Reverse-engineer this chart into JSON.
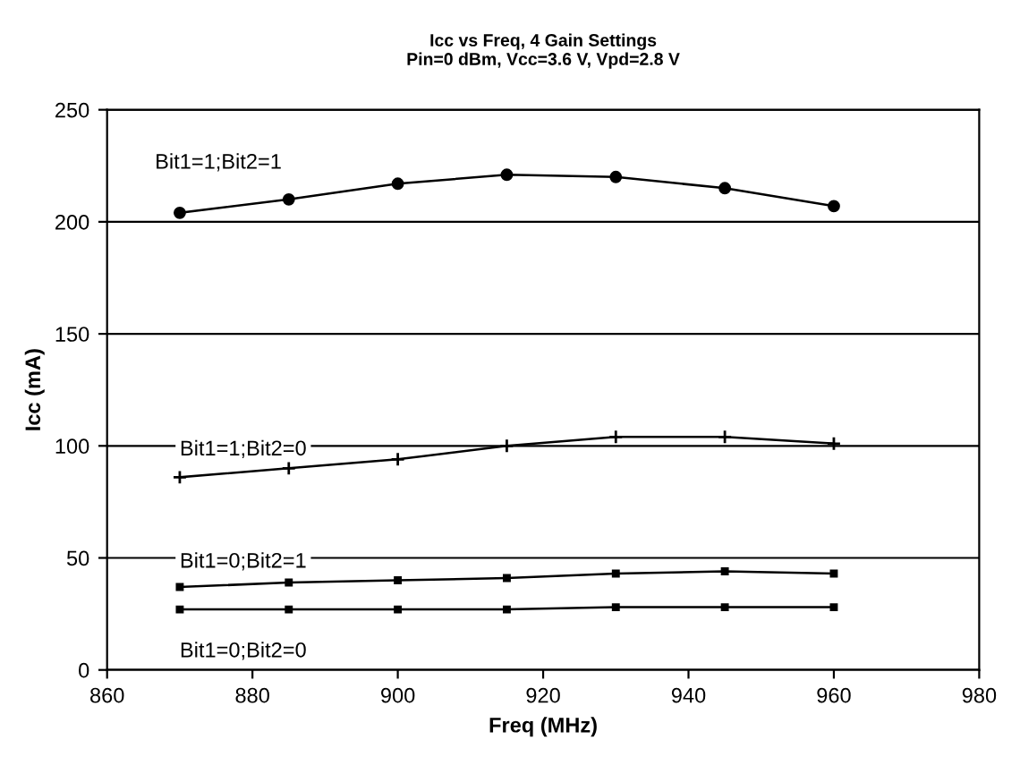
{
  "chart_data": {
    "type": "line",
    "title": "Icc vs Freq, 4 Gain Settings\nPin=0 dBm, Vcc=3.6 V, Vpd=2.8 V",
    "xlabel": "Freq (MHz)",
    "ylabel": "Icc (mA)",
    "x": [
      870,
      885,
      900,
      915,
      930,
      945,
      960
    ],
    "series": [
      {
        "name": "Bit1=1;Bit2=1",
        "color": "#000000",
        "marker": "circle",
        "values": [
          204,
          210,
          217,
          221,
          220,
          215,
          207
        ]
      },
      {
        "name": "Bit1=1;Bit2=0",
        "color": "#000000",
        "marker": "cross",
        "values": [
          86,
          90,
          94,
          100,
          104,
          104,
          101
        ]
      },
      {
        "name": "Bit1=0;Bit2=1",
        "color": "#000000",
        "marker": "square",
        "values": [
          37,
          39,
          40,
          41,
          43,
          44,
          43
        ]
      },
      {
        "name": "Bit1=0;Bit2=0",
        "color": "#000000",
        "marker": "square",
        "values": [
          27,
          27,
          27,
          27,
          28,
          28,
          28
        ]
      }
    ],
    "xlim": [
      860,
      980
    ],
    "xticks": [
      860,
      880,
      900,
      920,
      940,
      960,
      980
    ],
    "ylim": [
      0,
      250
    ],
    "yticks": [
      0,
      50,
      100,
      150,
      200,
      250
    ],
    "grid": "y",
    "legend": false
  }
}
